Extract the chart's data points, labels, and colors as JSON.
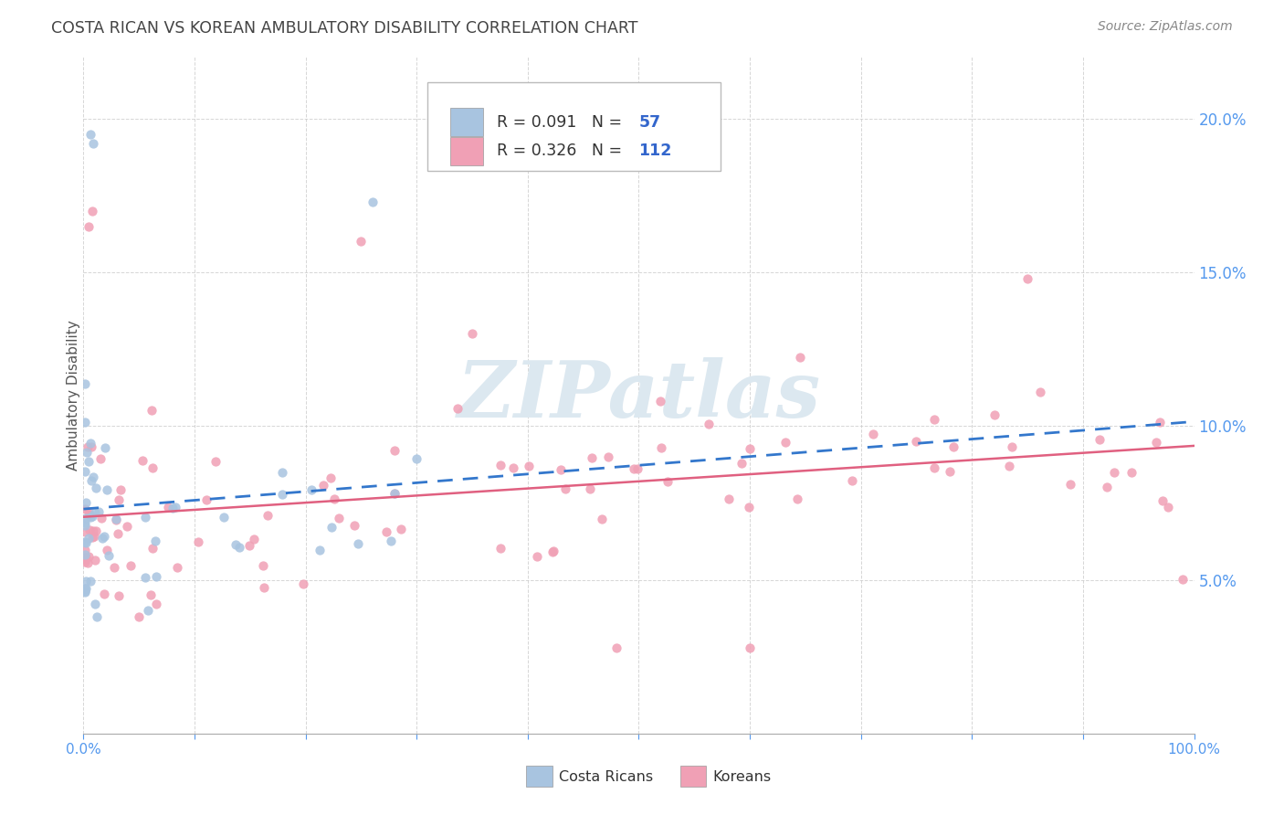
{
  "title": "COSTA RICAN VS KOREAN AMBULATORY DISABILITY CORRELATION CHART",
  "source": "Source: ZipAtlas.com",
  "ylabel": "Ambulatory Disability",
  "xlim": [
    0.0,
    1.0
  ],
  "ylim": [
    0.0,
    0.22
  ],
  "yticks": [
    0.05,
    0.1,
    0.15,
    0.2
  ],
  "cr_color": "#a8c4e0",
  "korean_color": "#f0a0b5",
  "cr_line_color": "#3377cc",
  "korean_line_color": "#e06080",
  "watermark_color": "#dce8f0",
  "background_color": "#ffffff",
  "grid_color": "#cccccc",
  "tick_color": "#5599ee",
  "title_color": "#444444",
  "ylabel_color": "#555555",
  "source_color": "#888888",
  "legend_box_color": "#dddddd",
  "legend_r_color": "#333333",
  "legend_n_color": "#3366cc"
}
